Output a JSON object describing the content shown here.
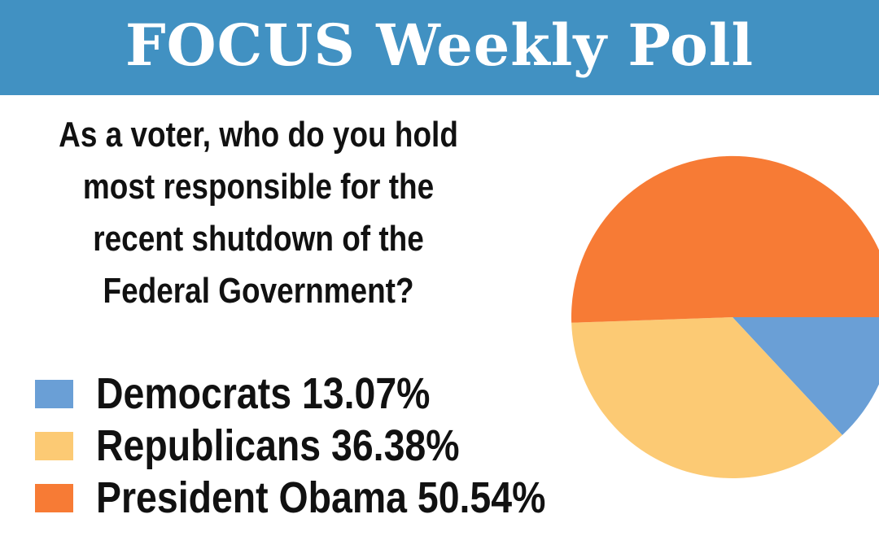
{
  "header": {
    "title": "FOCUS Weekly Poll"
  },
  "question": {
    "lines": [
      "As a voter, who do you hold",
      "most responsible for the",
      "recent shutdown of the",
      "Federal Government?"
    ]
  },
  "legend": {
    "items": [
      {
        "label": "Democrats 13.07%",
        "color": "#6a9fd6"
      },
      {
        "label": "Republicans 36.38%",
        "color": "#fcca74"
      },
      {
        "label": "President Obama 50.54%",
        "color": "#f77b35"
      }
    ]
  },
  "chart_data": {
    "type": "pie",
    "title": "As a voter, who do you hold most responsible for the recent shutdown of the Federal Government?",
    "categories": [
      "Democrats",
      "Republicans",
      "President Obama"
    ],
    "values": [
      13.07,
      36.38,
      50.54
    ],
    "colors": [
      "#6a9fd6",
      "#fcca74",
      "#f77b35"
    ],
    "legend": "left",
    "grid": false
  }
}
